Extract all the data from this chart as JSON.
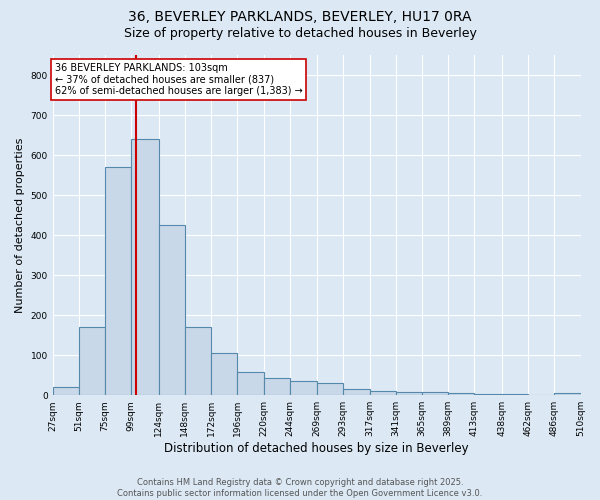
{
  "title": "36, BEVERLEY PARKLANDS, BEVERLEY, HU17 0RA",
  "subtitle": "Size of property relative to detached houses in Beverley",
  "xlabel": "Distribution of detached houses by size in Beverley",
  "ylabel": "Number of detached properties",
  "bin_edges": [
    27,
    51,
    75,
    99,
    124,
    148,
    172,
    196,
    220,
    244,
    269,
    293,
    317,
    341,
    365,
    389,
    413,
    438,
    462,
    486,
    510
  ],
  "bar_heights": [
    20,
    170,
    570,
    640,
    425,
    170,
    105,
    57,
    42,
    35,
    30,
    15,
    10,
    8,
    7,
    5,
    4,
    2,
    1,
    5
  ],
  "bar_color": "#c8d8e8",
  "bar_edge_color": "#5588aa",
  "bar_linewidth": 0.8,
  "vline_x": 103,
  "vline_color": "#cc0000",
  "vline_linewidth": 1.5,
  "annotation_text": "36 BEVERLEY PARKLANDS: 103sqm\n← 37% of detached houses are smaller (837)\n62% of semi-detached houses are larger (1,383) →",
  "annotation_box_edgecolor": "#cc0000",
  "annotation_box_facecolor": "white",
  "annotation_fontsize": 7.0,
  "ylim": [
    0,
    850
  ],
  "yticks": [
    0,
    100,
    200,
    300,
    400,
    500,
    600,
    700,
    800
  ],
  "background_color": "#dce9f5",
  "grid_color": "white",
  "title_fontsize": 10,
  "subtitle_fontsize": 9,
  "xlabel_fontsize": 8.5,
  "ylabel_fontsize": 8,
  "tick_fontsize": 6.5,
  "footer_text": "Contains HM Land Registry data © Crown copyright and database right 2025.\nContains public sector information licensed under the Open Government Licence v3.0.",
  "footer_fontsize": 6.0
}
